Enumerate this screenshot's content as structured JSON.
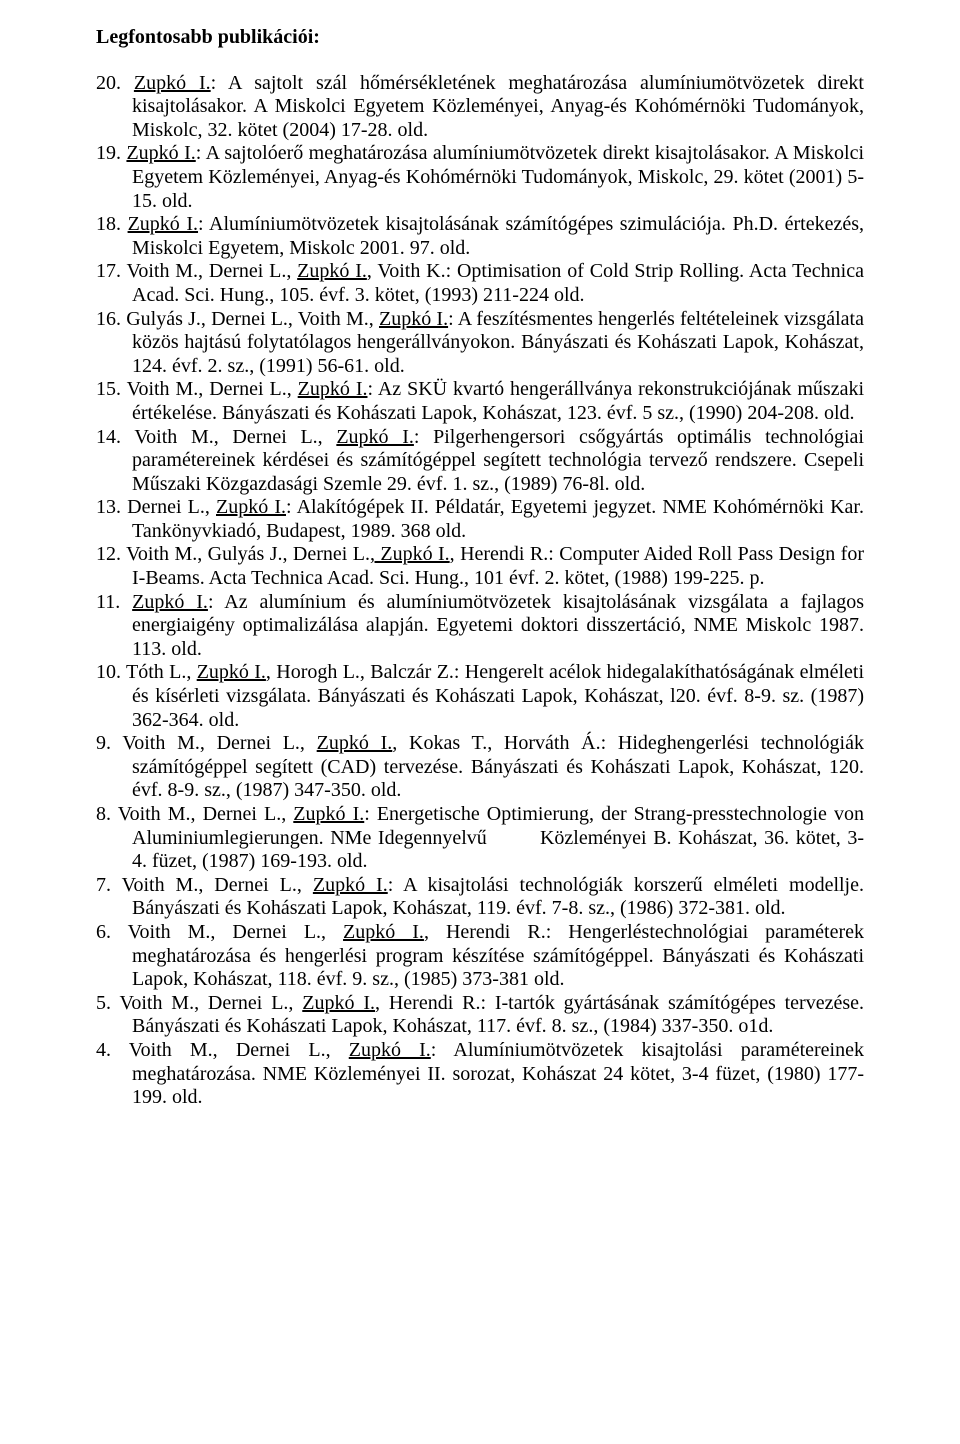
{
  "heading": "Legfontosabb publikációi:",
  "entries": [
    {
      "num": "20.",
      "pre": "",
      "u": "Zupkó I.",
      "post": ": A sajtolt szál hőmérsékletének meghatározása alumíniumötvözetek direkt kisajtolásakor. A Miskolci Egyetem Közleményei, Anyag-és Kohómérnöki Tudományok, Miskolc, 32. kötet (2004) 17-28. old."
    },
    {
      "num": "19.",
      "pre": "",
      "u": "Zupkó I.",
      "post": ": A sajtolóerő meghatározása alumíniumötvözetek direkt kisajtolásakor. A Miskolci Egyetem Közleményei, Anyag-és Kohómérnöki Tudományok, Miskolc, 29. kötet (2001) 5-15. old."
    },
    {
      "num": "18.",
      "pre": "",
      "u": "Zupkó I.",
      "post": ": Alumíniumötvözetek kisajtolásának számítógépes szimulációja. Ph.D. értekezés, Miskolci Egyetem, Miskolc 2001. 97. old."
    },
    {
      "num": "17.",
      "pre": "Voith M., Dernei L., ",
      "u": "Zupkó I.",
      "post": ", Voith K.: Optimisation of Cold Strip Rolling. Acta Technica Acad. Sci. Hung., 105. évf. 3. kötet, (1993) 211-224 old."
    },
    {
      "num": "16.",
      "pre": "Gulyás J., Dernei L., Voith M., ",
      "u": "Zupkó I.",
      "post": ": A feszítésmentes hengerlés feltételeinek vizsgálata közös hajtású folytatólagos hengerállványokon. Bányászati és Kohászati Lapok, Kohászat, 124. évf. 2. sz., (1991) 56-61. old."
    },
    {
      "num": "15.",
      "pre": "Voith M., Dernei L., ",
      "u": "Zupkó I.",
      "post": ": Az SKÜ kvartó hengerállványa rekonstrukciójának műszaki értékelése. Bányászati és Kohászati Lapok, Kohászat, 123. évf. 5 sz., (1990) 204-208. old."
    },
    {
      "num": "14.",
      "pre": "Voith M., Dernei L., ",
      "u": "Zupkó I.",
      "post": ": Pilgerhengersori csőgyártás optimális technológiai paramétereinek kérdései és számítógéppel segített technológia tervező rendszere. Csepeli Műszaki Közgazdasági Szemle 29. évf. 1. sz., (1989) 76-8l. old."
    },
    {
      "num": "13.",
      "pre": "Dernei L., ",
      "u": "Zupkó I.",
      "post": ": Alakítógépek II. Példatár, Egyetemi jegyzet. NME Kohómérnöki Kar. Tankönyvkiadó, Budapest, 1989. 368 old."
    },
    {
      "num": "12.",
      "pre": "Voith M., Gulyás J., Dernei L.",
      "u": ", Zupkó I.",
      "post": ", Herendi R.: Computer Aided Roll Pass Design for I-Beams. Acta Technica Acad. Sci. Hung., 101 évf. 2. kötet, (1988) 199-225. p."
    },
    {
      "num": "11.",
      "pre": "",
      "u": "Zupkó I.",
      "post": ": Az alumínium és alumíniumötvözetek kisajtolásának vizsgálata a fajlagos energiaigény optimalizálása alapján. Egyetemi doktori disszertáció, NME Miskolc 1987. 113. old."
    },
    {
      "num": "10.",
      "pre": " Tóth L., ",
      "u": "Zupkó I.",
      "post": ", Horogh L., Balczár Z.: Hengerelt acélok hidegalakíthatóságának elméleti és kísérleti vizsgálata. Bányászati és Kohászati Lapok, Kohászat, l20. évf. 8-9. sz. (1987) 362-364. old."
    },
    {
      "num": "9.",
      "pre": " Voith M., Dernei L., ",
      "u": "Zupkó I.",
      "post": ", Kokas T., Horváth Á.: Hideghengerlési technológiák számítógéppel segített (CAD) tervezése. Bányászati és Kohászati Lapok, Kohászat, 120. évf. 8-9. sz., (1987) 347-350. old."
    },
    {
      "num": "8.",
      "pre": " Voith M., Dernei L., ",
      "u": "Zupkó I.",
      "post": ": Energetische Optimierung, der Strang-presstechnologie von Aluminiumlegierungen. NMe Idegennyelvű    Közleményei B. Kohászat, 36. kötet, 3-4. füzet, (1987) 169-193. old."
    },
    {
      "num": "7.",
      "pre": " Voith M., Dernei L., ",
      "u": "Zupkó I.",
      "post": ": A kisajtolási technológiák korszerű elméleti modellje. Bányászati és Kohászati Lapok, Kohászat, 119. évf. 7-8. sz., (1986) 372-381. old."
    },
    {
      "num": "6.",
      "pre": " Voith M., Dernei L., ",
      "u": "Zupkó I.",
      "post": ", Herendi R.: Hengerléstechnológiai paraméterek meghatározása és hengerlési program készítése számítógéppel. Bányászati és Kohászati Lapok, Kohászat, 118. évf. 9. sz., (1985) 373-381 old."
    },
    {
      "num": "5.",
      "pre": " Voith M., Dernei L., ",
      "u": "Zupkó I.",
      "post": ", Herendi R.: I-tartók gyártásának számítógépes tervezése. Bányászati és Kohászati Lapok, Kohászat, 117. évf. 8. sz., (1984) 337-350. o1d."
    },
    {
      "num": "4.",
      "pre": " Voith M., Dernei L., ",
      "u": "Zupkó I.",
      "post": ": Alumíniumötvözetek kisajtolási paramétereinek meghatározása. NME Közleményei II. sorozat, Kohászat 24 kötet, 3-4 füzet, (1980) 177-199. old."
    }
  ]
}
